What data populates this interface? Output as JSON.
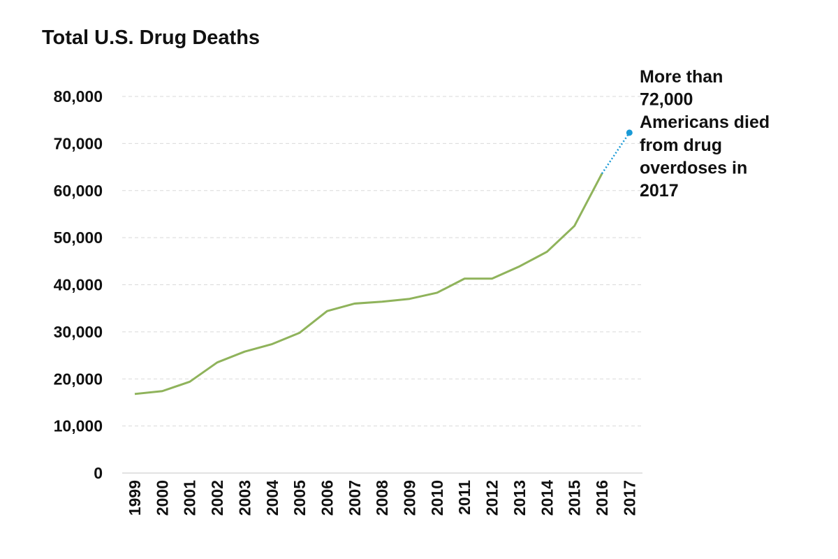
{
  "chart_data": {
    "type": "line",
    "title": "Total U.S. Drug Deaths",
    "xlabel": "",
    "ylabel": "",
    "ylim": [
      0,
      80000
    ],
    "yticks": [
      "0",
      "10,000",
      "20,000",
      "30,000",
      "40,000",
      "50,000",
      "60,000",
      "70,000",
      "80,000"
    ],
    "ytick_values": [
      0,
      10000,
      20000,
      30000,
      40000,
      50000,
      60000,
      70000,
      80000
    ],
    "grid": true,
    "categories": [
      "1999",
      "2000",
      "2001",
      "2002",
      "2003",
      "2004",
      "2005",
      "2006",
      "2007",
      "2008",
      "2009",
      "2010",
      "2011",
      "2012",
      "2013",
      "2014",
      "2015",
      "2016",
      "2017"
    ],
    "series": [
      {
        "style": "solid",
        "color": "#8fb35b",
        "x": [
          "1999",
          "2000",
          "2001",
          "2002",
          "2003",
          "2004",
          "2005",
          "2006",
          "2007",
          "2008",
          "2009",
          "2010",
          "2011",
          "2012",
          "2013",
          "2014",
          "2015",
          "2016"
        ],
        "values": [
          16800,
          17400,
          19400,
          23500,
          25800,
          27400,
          29800,
          34400,
          36000,
          36400,
          37000,
          38300,
          41300,
          41300,
          43900,
          47000,
          52500,
          63600
        ]
      },
      {
        "style": "dotted",
        "color": "#1a9ad6",
        "x": [
          "2016",
          "2017"
        ],
        "values": [
          63600,
          72300
        ],
        "end_marker": true
      }
    ],
    "annotations": [
      {
        "x": "2017",
        "lines": [
          "More than",
          "72,000",
          "Americans died",
          "from drug",
          "overdoses in",
          "2017"
        ]
      }
    ]
  }
}
